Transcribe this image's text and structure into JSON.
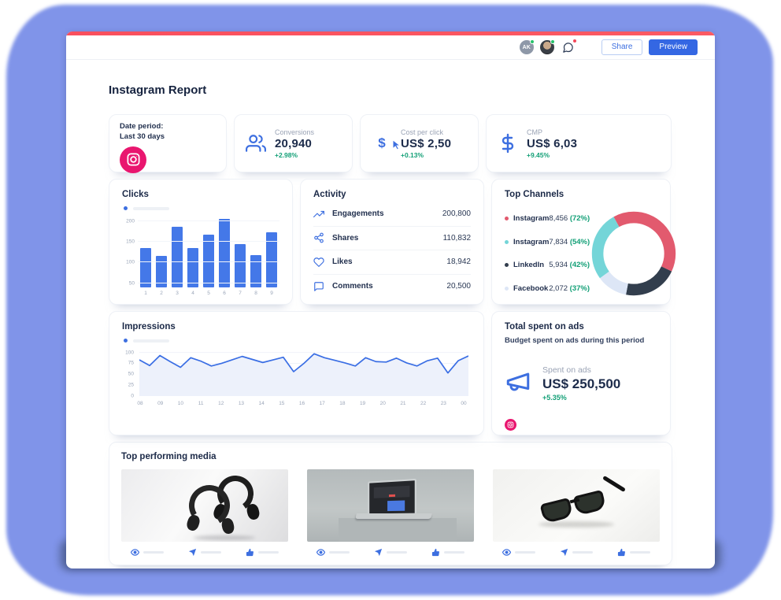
{
  "header": {
    "avatar_initials": "AK",
    "share_label": "Share",
    "preview_label": "Preview"
  },
  "page_title": "Instagram Report",
  "stats": {
    "date_period": {
      "label": "Date period:",
      "value": "Last 30 days",
      "network": "instagram"
    },
    "cards": [
      {
        "label": "Conversions",
        "value": "20,940",
        "delta": "+2.98%",
        "icon": "users-icon"
      },
      {
        "label": "Cost per click",
        "value": "US$ 2,50",
        "delta": "+0.13%",
        "icon": "dollar-cursor-icon"
      },
      {
        "label": "CMP",
        "value": "US$ 6,03",
        "delta": "+9.45%",
        "icon": "dollar-icon"
      }
    ]
  },
  "activity": {
    "title": "Activity",
    "rows": [
      {
        "icon": "engagements-icon",
        "label": "Engagements",
        "value": "200,800"
      },
      {
        "icon": "shares-icon",
        "label": "Shares",
        "value": "110,832"
      },
      {
        "icon": "likes-icon",
        "label": "Likes",
        "value": "18,942"
      },
      {
        "icon": "comments-icon",
        "label": "Comments",
        "value": "20,500"
      }
    ]
  },
  "top_channels": {
    "title": "Top Channels",
    "legend": [
      {
        "label": "Instagram",
        "value": "8,456",
        "percent": "(72%)",
        "color": "#e25a6e"
      },
      {
        "label": "Instagram",
        "value": "7,834",
        "percent": "(54%)",
        "color": "#74d5d8"
      },
      {
        "label": "LinkedIn",
        "value": "5,934",
        "percent": "(42%)",
        "color": "#323e4d"
      },
      {
        "label": "Facebook",
        "value": "2,072",
        "percent": "(37%)",
        "color": "#dde6f6"
      }
    ]
  },
  "spent": {
    "title": "Total spent on ads",
    "subtitle": "Budget spent on ads during this period",
    "label": "Spent on ads",
    "value": "US$ 250,500",
    "delta": "+5.35%",
    "network": "instagram"
  },
  "media": {
    "title": "Top performing media",
    "items": [
      {
        "name": "headphones",
        "metrics": [
          "views",
          "shares",
          "likes"
        ]
      },
      {
        "name": "laptop",
        "metrics": [
          "views",
          "shares",
          "likes"
        ]
      },
      {
        "name": "sunglasses",
        "metrics": [
          "views",
          "shares",
          "likes"
        ]
      }
    ]
  },
  "chart_data": [
    {
      "id": "clicks",
      "type": "bar",
      "title": "Clicks",
      "categories": [
        "1",
        "2",
        "3",
        "4",
        "5",
        "6",
        "7",
        "8",
        "9"
      ],
      "values": [
        135,
        117,
        187,
        136,
        168,
        206,
        144,
        119,
        174
      ],
      "yticks": [
        50,
        100,
        150,
        200
      ],
      "ylim": [
        40,
        215
      ],
      "bar_color": "#4478e8",
      "grid": true,
      "legend_position": "top-left-placeholder"
    },
    {
      "id": "impressions",
      "type": "line",
      "title": "Impressions",
      "xticks": [
        "08",
        "09",
        "10",
        "11",
        "12",
        "13",
        "14",
        "15",
        "16",
        "17",
        "18",
        "19",
        "20",
        "21",
        "22",
        "23",
        "00"
      ],
      "values": [
        83,
        70,
        93,
        79,
        66,
        88,
        80,
        69,
        75,
        83,
        91,
        84,
        77,
        83,
        89,
        56,
        75,
        97,
        88,
        82,
        76,
        69,
        88,
        79,
        78,
        87,
        76,
        69,
        81,
        87,
        53,
        81,
        92
      ],
      "yticks": [
        0,
        25,
        50,
        75,
        100
      ],
      "ylim": [
        0,
        112
      ],
      "line_color": "#3a6ee4",
      "area_color": "#edf1fb",
      "grid": true,
      "legend_position": "top-left-placeholder"
    },
    {
      "id": "top-channels-donut",
      "type": "pie",
      "title": "Top Channels",
      "donut": true,
      "rotation_pct": -8,
      "slices": [
        {
          "label": "Instagram",
          "share": 40,
          "color": "#e25a6e"
        },
        {
          "label": "LinkedIn",
          "share": 21,
          "color": "#323e4d"
        },
        {
          "label": "Facebook",
          "share": 12,
          "color": "#dde6f6"
        },
        {
          "label": "Instagram",
          "share": 27,
          "color": "#74d5d8"
        }
      ]
    }
  ]
}
